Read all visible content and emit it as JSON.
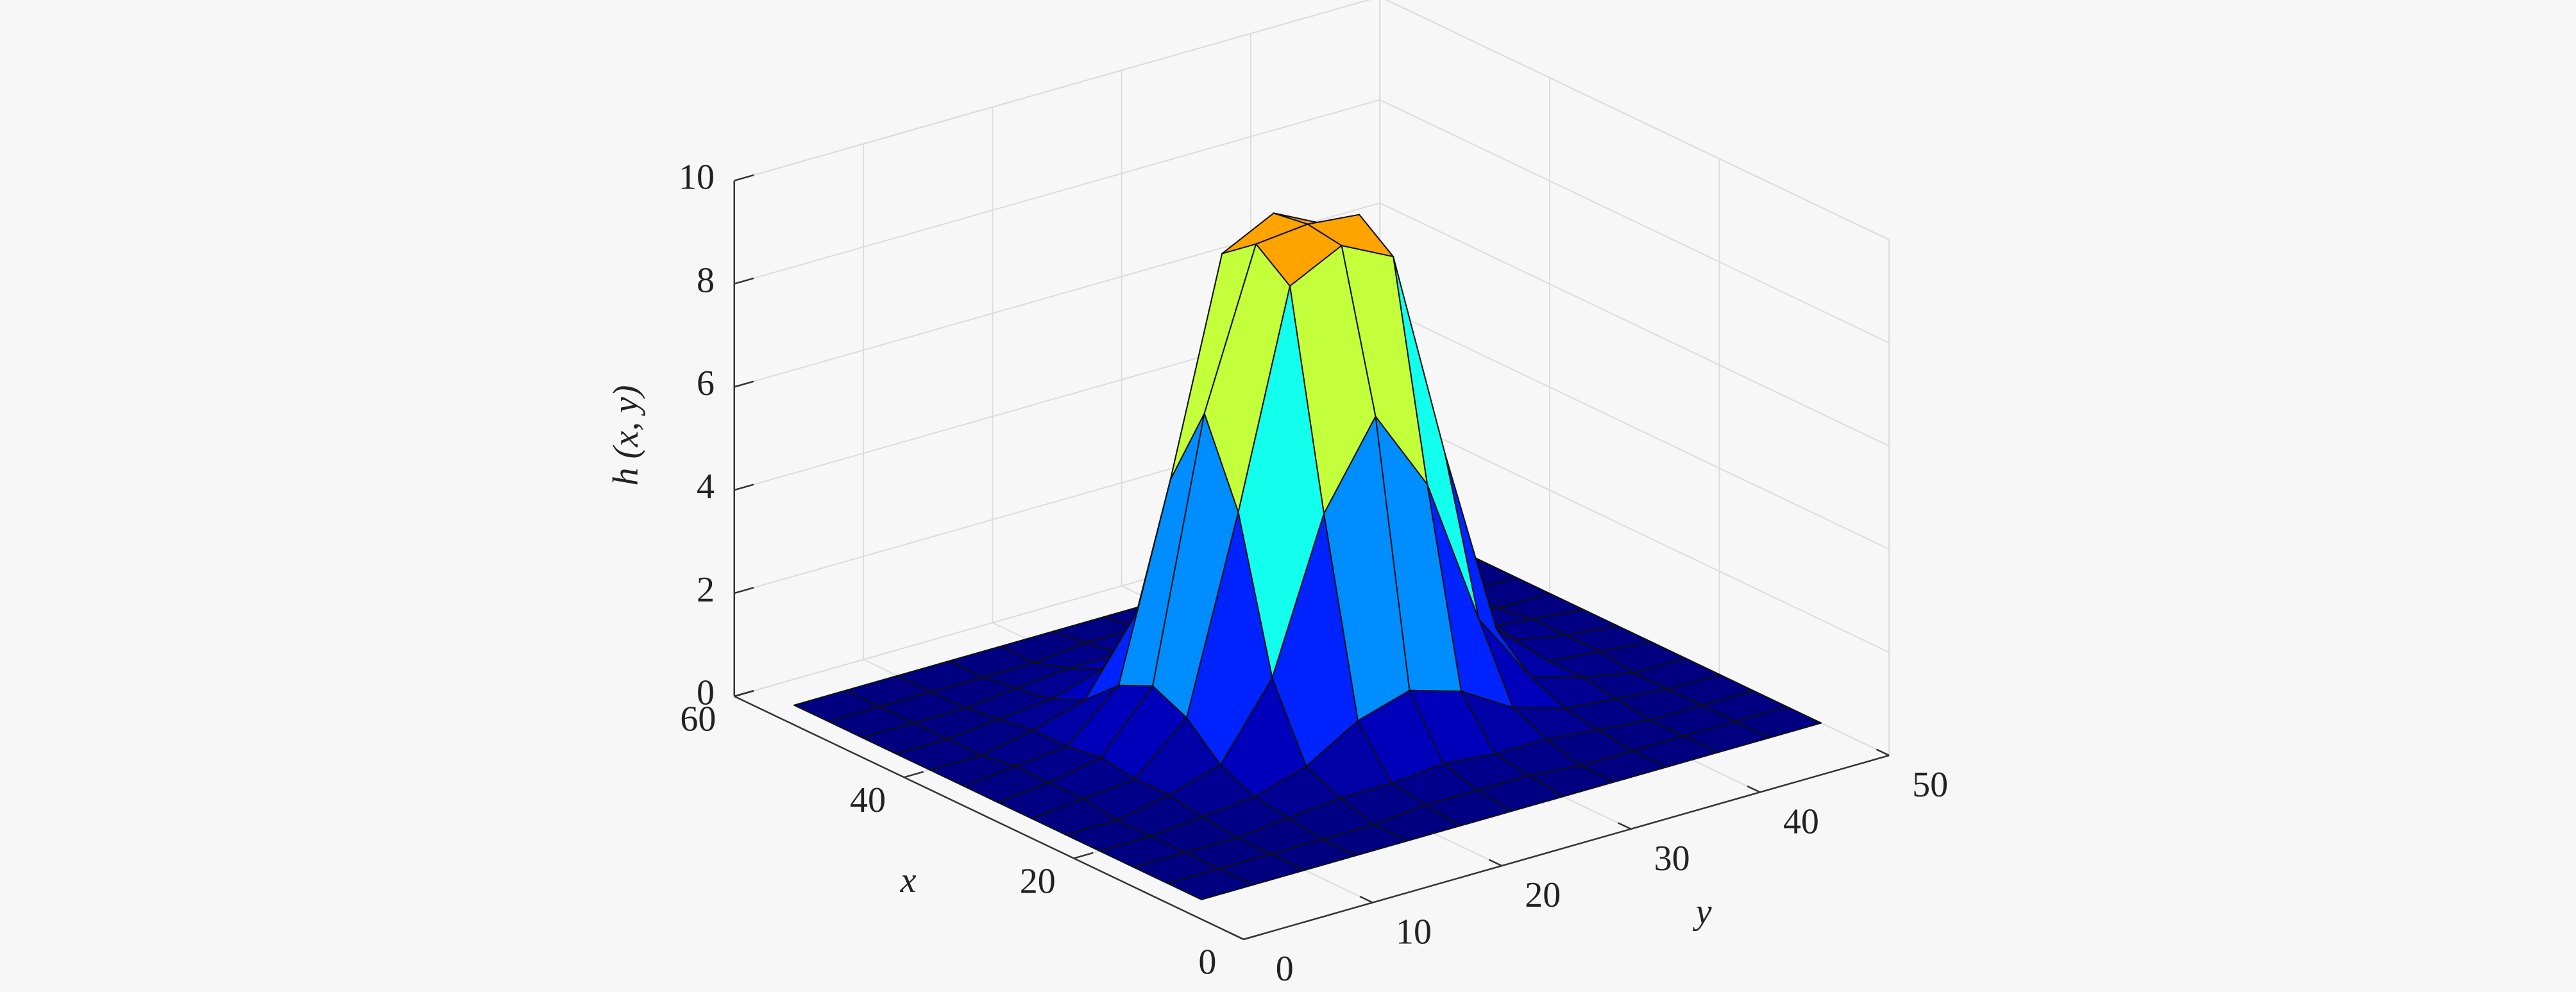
{
  "chart_data": {
    "type": "surface",
    "xlabel": "x",
    "ylabel": "y",
    "zlabel": "h (x, y)",
    "colormap": "jet",
    "clim": [
      0,
      13
    ],
    "grid": true,
    "xlim": [
      0,
      60
    ],
    "ylim": [
      0,
      50
    ],
    "zlim": [
      0,
      10
    ],
    "xticks": [
      0,
      20,
      40,
      60
    ],
    "yticks": [
      0,
      10,
      20,
      30,
      40,
      50
    ],
    "zticks": [
      0,
      2,
      4,
      6,
      8,
      10
    ],
    "x": [
      8,
      12,
      16,
      20,
      24,
      28,
      32,
      36,
      40,
      44,
      48,
      52,
      56
    ],
    "y": [
      2,
      6,
      10,
      14,
      18,
      22,
      26,
      30,
      34,
      38,
      42,
      46,
      50
    ],
    "z": [
      [
        0,
        0,
        0,
        0,
        0,
        0,
        0,
        0,
        0,
        0,
        0,
        0,
        0
      ],
      [
        0,
        0,
        0,
        0,
        0,
        0.1,
        0.1,
        0.1,
        0,
        0,
        0,
        0,
        0
      ],
      [
        0,
        0,
        0,
        0.1,
        0.2,
        0.2,
        0.3,
        0.2,
        0.2,
        0.1,
        0,
        0,
        0
      ],
      [
        0,
        0,
        0.1,
        0.2,
        0.5,
        1.1,
        1.4,
        1.1,
        0.5,
        0.2,
        0.1,
        0,
        0
      ],
      [
        0,
        0,
        0.2,
        0.5,
        1.9,
        4.8,
        6.4,
        4.8,
        1.9,
        0.5,
        0.2,
        0,
        0
      ],
      [
        0,
        0.1,
        0.2,
        1.1,
        4.8,
        8.9,
        9.4,
        8.9,
        4.8,
        1.1,
        0.2,
        0.1,
        0
      ],
      [
        0,
        0.1,
        0.3,
        1.4,
        6.4,
        9.4,
        9.5,
        9.4,
        6.4,
        1.4,
        0.3,
        0.1,
        0
      ],
      [
        0,
        0.1,
        0.2,
        1.1,
        4.8,
        8.9,
        9.4,
        8.9,
        4.8,
        1.1,
        0.2,
        0.1,
        0
      ],
      [
        0,
        0,
        0.2,
        0.5,
        1.9,
        4.8,
        6.4,
        4.8,
        1.9,
        0.5,
        0.2,
        0,
        0
      ],
      [
        0,
        0,
        0.1,
        0.2,
        0.5,
        1.1,
        1.4,
        1.1,
        0.5,
        0.2,
        0.1,
        0,
        0
      ],
      [
        0,
        0,
        0,
        0.1,
        0.2,
        0.2,
        0.3,
        0.2,
        0.2,
        0.1,
        0,
        0,
        0
      ],
      [
        0,
        0,
        0,
        0,
        0,
        0.1,
        0.1,
        0.1,
        0,
        0,
        0,
        0,
        0
      ],
      [
        0,
        0,
        0,
        0,
        0,
        0,
        0,
        0,
        0,
        0,
        0,
        0,
        0
      ]
    ]
  }
}
